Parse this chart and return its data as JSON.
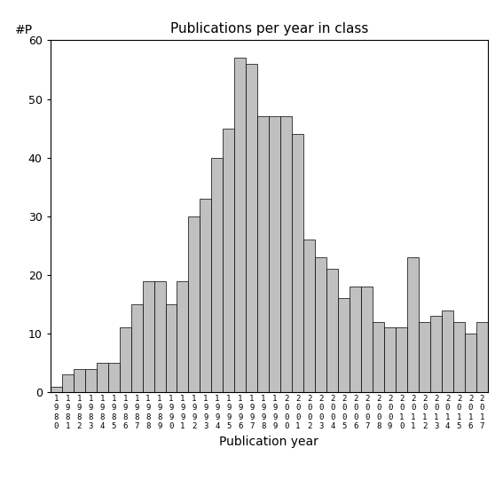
{
  "title": "Publications per year in class",
  "xlabel": "Publication year",
  "ylabel": "#P",
  "bar_color": "#c0c0c0",
  "bar_edgecolor": "#000000",
  "ylim": [
    0,
    60
  ],
  "yticks": [
    0,
    10,
    20,
    30,
    40,
    50,
    60
  ],
  "years": [
    1980,
    1981,
    1982,
    1983,
    1984,
    1985,
    1986,
    1987,
    1988,
    1989,
    1990,
    1991,
    1992,
    1993,
    1994,
    1995,
    1996,
    1997,
    1998,
    1999,
    2000,
    2001,
    2002,
    2003,
    2004,
    2005,
    2006,
    2007,
    2008,
    2009,
    2010,
    2011,
    2012,
    2013,
    2014,
    2015,
    2016,
    2017
  ],
  "values": [
    1,
    3,
    4,
    4,
    5,
    5,
    11,
    15,
    19,
    19,
    15,
    19,
    30,
    33,
    40,
    45,
    57,
    56,
    47,
    47,
    47,
    44,
    26,
    23,
    21,
    16,
    18,
    18,
    12,
    11,
    11,
    23,
    12,
    13,
    14,
    12,
    10,
    12
  ],
  "background_color": "#ffffff"
}
